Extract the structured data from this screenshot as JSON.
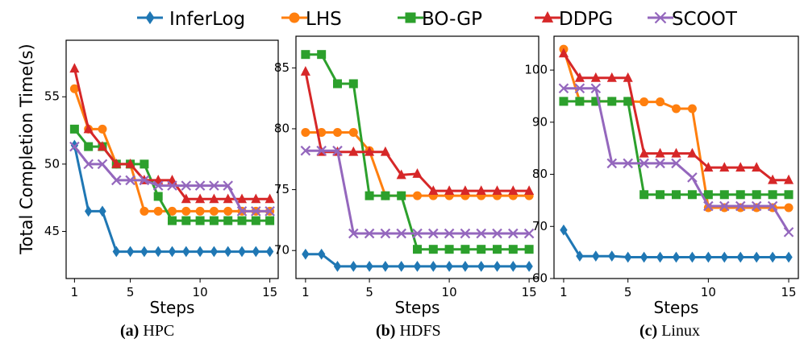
{
  "legend": {
    "items": [
      {
        "name": "InferLog",
        "color": "#1f77b4",
        "marker": "diamond"
      },
      {
        "name": "LHS",
        "color": "#ff7f0e",
        "marker": "circle"
      },
      {
        "name": "BO-GP",
        "color": "#2ca02c",
        "marker": "square"
      },
      {
        "name": "DDPG",
        "color": "#d62728",
        "marker": "triangle"
      },
      {
        "name": "SCOOT",
        "color": "#9467bd",
        "marker": "x"
      }
    ]
  },
  "ylabel": "Total Completion Time(s)",
  "chart_data": [
    {
      "type": "line",
      "caption_label": "(a)",
      "caption_name": "HPC",
      "xlabel": "Steps",
      "x": [
        1,
        2,
        3,
        4,
        5,
        6,
        7,
        8,
        9,
        10,
        11,
        12,
        13,
        14,
        15
      ],
      "xticks": [
        1,
        5,
        10,
        15
      ],
      "xticklabels": [
        "1",
        "5",
        "10",
        "15"
      ],
      "xlim": [
        0.4,
        15.6
      ],
      "ylim": [
        41.5,
        59.2
      ],
      "yticks": [
        45,
        50,
        55
      ],
      "yticklabels": [
        "45",
        "50",
        "55"
      ],
      "series": [
        {
          "name": "InferLog",
          "values": [
            51.4,
            46.5,
            46.5,
            43.5,
            43.5,
            43.5,
            43.5,
            43.5,
            43.5,
            43.5,
            43.5,
            43.5,
            43.5,
            43.5,
            43.5
          ]
        },
        {
          "name": "LHS",
          "values": [
            55.6,
            52.6,
            52.6,
            50.0,
            50.0,
            46.5,
            46.5,
            46.5,
            46.5,
            46.5,
            46.5,
            46.5,
            46.5,
            46.5,
            46.5
          ]
        },
        {
          "name": "BO-GP",
          "values": [
            52.6,
            51.3,
            51.3,
            50.0,
            50.0,
            50.0,
            47.6,
            45.8,
            45.8,
            45.8,
            45.8,
            45.8,
            45.8,
            45.8,
            45.8
          ]
        },
        {
          "name": "DDPG",
          "values": [
            57.1,
            52.6,
            51.3,
            50.0,
            50.0,
            48.8,
            48.8,
            48.8,
            47.4,
            47.4,
            47.4,
            47.4,
            47.4,
            47.4,
            47.4
          ]
        },
        {
          "name": "SCOOT",
          "values": [
            51.3,
            50.0,
            50.0,
            48.8,
            48.8,
            48.8,
            48.4,
            48.4,
            48.4,
            48.4,
            48.4,
            48.4,
            46.5,
            46.5,
            46.5
          ]
        }
      ]
    },
    {
      "type": "line",
      "caption_label": "(b)",
      "caption_name": "HDFS",
      "xlabel": "Steps",
      "x": [
        1,
        2,
        3,
        4,
        5,
        6,
        7,
        8,
        9,
        10,
        11,
        12,
        13,
        14,
        15
      ],
      "xticks": [
        1,
        5,
        10,
        15
      ],
      "xticklabels": [
        "1",
        "5",
        "10",
        "15"
      ],
      "xlim": [
        0.4,
        15.6
      ],
      "ylim": [
        67.7,
        87.6
      ],
      "yticks": [
        70,
        75,
        80,
        85
      ],
      "yticklabels": [
        "70",
        "75",
        "80",
        "85"
      ],
      "series": [
        {
          "name": "InferLog",
          "values": [
            69.7,
            69.7,
            68.7,
            68.7,
            68.7,
            68.7,
            68.7,
            68.7,
            68.7,
            68.7,
            68.7,
            68.7,
            68.7,
            68.7,
            68.7
          ]
        },
        {
          "name": "LHS",
          "values": [
            79.7,
            79.7,
            79.7,
            79.7,
            78.2,
            74.5,
            74.5,
            74.5,
            74.5,
            74.5,
            74.5,
            74.5,
            74.5,
            74.5,
            74.5
          ]
        },
        {
          "name": "BO-GP",
          "values": [
            86.1,
            86.1,
            83.7,
            83.7,
            74.5,
            74.5,
            74.5,
            70.1,
            70.1,
            70.1,
            70.1,
            70.1,
            70.1,
            70.1,
            70.1
          ]
        },
        {
          "name": "DDPG",
          "values": [
            84.7,
            78.1,
            78.1,
            78.1,
            78.1,
            78.1,
            76.2,
            76.3,
            74.9,
            74.9,
            74.9,
            74.9,
            74.9,
            74.9,
            74.9
          ]
        },
        {
          "name": "SCOOT",
          "values": [
            78.2,
            78.2,
            78.2,
            71.4,
            71.4,
            71.4,
            71.4,
            71.4,
            71.4,
            71.4,
            71.4,
            71.4,
            71.4,
            71.4,
            71.4
          ]
        }
      ]
    },
    {
      "type": "line",
      "caption_label": "(c)",
      "caption_name": "Linux",
      "xlabel": "Steps",
      "x": [
        1,
        2,
        3,
        4,
        5,
        6,
        7,
        8,
        9,
        10,
        11,
        12,
        13,
        14,
        15
      ],
      "xticks": [
        1,
        5,
        10,
        15
      ],
      "xticklabels": [
        "1",
        "5",
        "10",
        "15"
      ],
      "xlim": [
        0.4,
        15.6
      ],
      "ylim": [
        60,
        106.5
      ],
      "yticks": [
        60,
        70,
        80,
        90,
        100
      ],
      "yticklabels": [
        "60",
        "70",
        "80",
        "90",
        "100"
      ],
      "series": [
        {
          "name": "InferLog",
          "values": [
            69.3,
            64.3,
            64.3,
            64.3,
            64.1,
            64.1,
            64.1,
            64.1,
            64.1,
            64.1,
            64.1,
            64.1,
            64.1,
            64.1,
            64.1
          ]
        },
        {
          "name": "LHS",
          "values": [
            104.0,
            94.0,
            94.0,
            94.0,
            94.0,
            93.9,
            93.9,
            92.6,
            92.6,
            73.6,
            73.6,
            73.6,
            73.6,
            73.6,
            73.6
          ]
        },
        {
          "name": "BO-GP",
          "values": [
            94.0,
            94.0,
            94.0,
            94.0,
            94.0,
            76.1,
            76.1,
            76.1,
            76.1,
            76.1,
            76.1,
            76.1,
            76.1,
            76.1,
            76.1
          ]
        },
        {
          "name": "DDPG",
          "values": [
            103.2,
            98.5,
            98.5,
            98.5,
            98.5,
            84.0,
            84.0,
            84.0,
            84.0,
            81.3,
            81.3,
            81.3,
            81.3,
            78.9,
            78.9
          ]
        },
        {
          "name": "SCOOT",
          "values": [
            96.5,
            96.5,
            96.5,
            82.1,
            82.1,
            82.1,
            82.1,
            82.1,
            79.4,
            73.9,
            73.9,
            73.9,
            73.9,
            73.9,
            68.9
          ]
        }
      ]
    }
  ]
}
